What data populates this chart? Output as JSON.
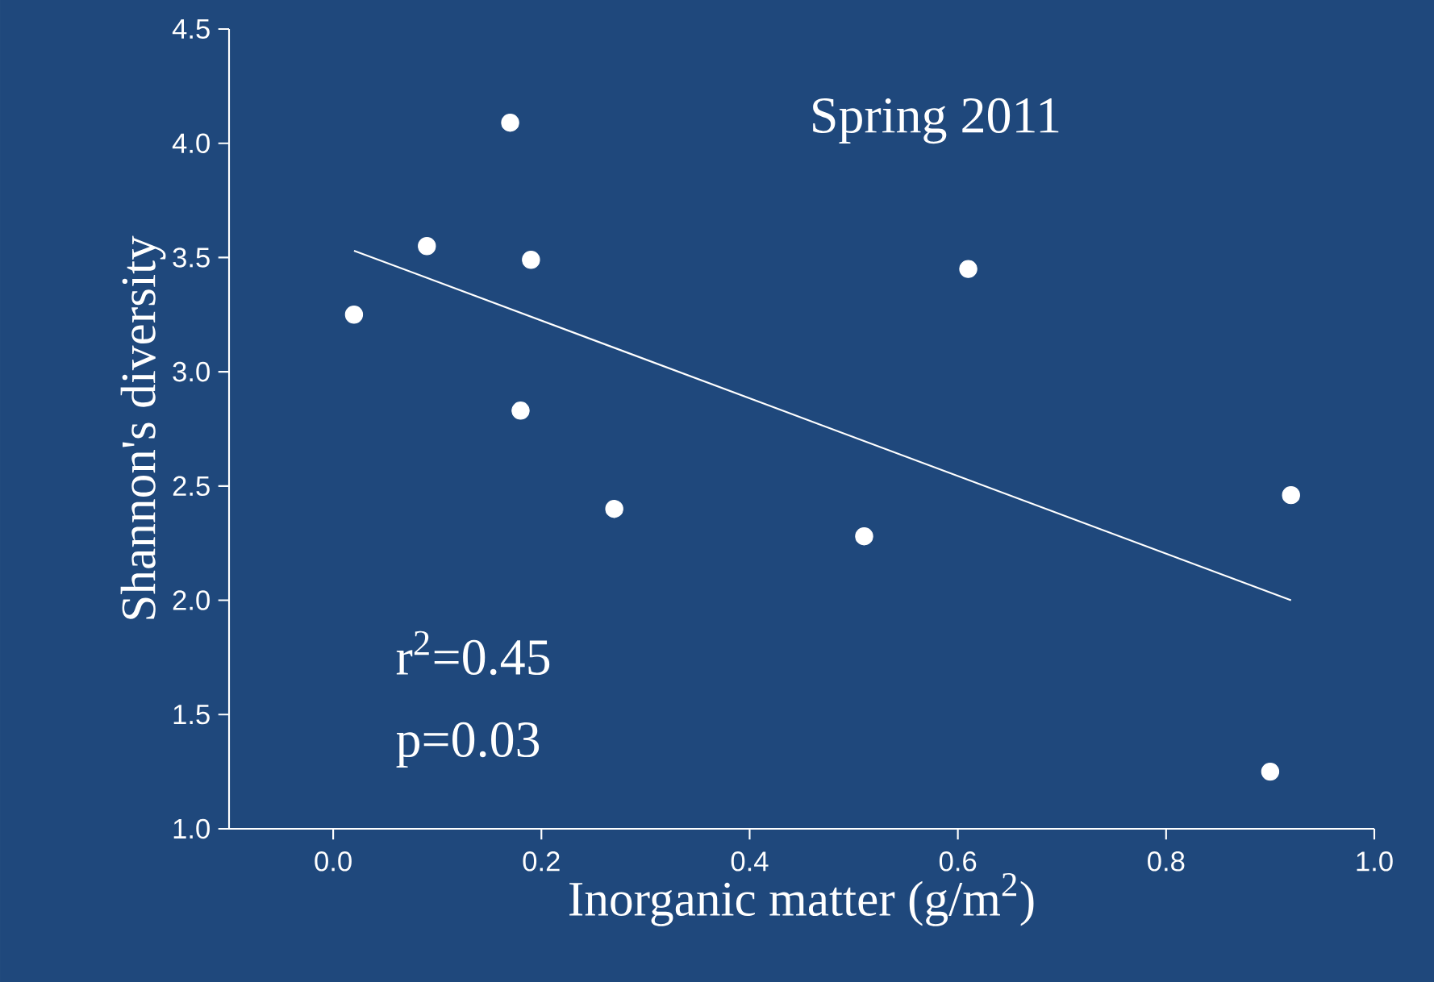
{
  "chart_data": {
    "type": "scatter",
    "xlabel": "Inorganic matter (g/m$^{2}$)",
    "ylabel": "Shannon's diversity",
    "xlim": [
      -0.1,
      1.0
    ],
    "xticks": [
      {
        "value": 0,
        "label": "0.0"
      },
      0.2,
      0.4,
      0.6,
      0.8,
      {
        "value": 1,
        "label": "1.0"
      }
    ],
    "ylim": [
      1.0,
      4.5
    ],
    "yticks": [
      {
        "value": 1,
        "label": "1.0"
      },
      1.5,
      {
        "value": 2,
        "label": "2.0"
      },
      2.5,
      {
        "value": 3,
        "label": "3.0"
      },
      3.5,
      {
        "value": 4,
        "label": "4.0"
      },
      4.5
    ],
    "annotations": [
      "Spring 2011",
      "r$^{2}$=0.45",
      "p=0.03"
    ],
    "series": [
      {
        "marker": "circle",
        "color": "#ffffff",
        "x": [
          0.02,
          0.09,
          0.17,
          0.19,
          0.18,
          0.27,
          0.51,
          0.61,
          0.92,
          0.9
        ],
        "values": [
          3.25,
          3.55,
          4.09,
          3.49,
          2.83,
          2.4,
          2.28,
          3.45,
          2.46,
          1.25
        ]
      },
      {
        "type": "line",
        "marker": "none",
        "color": "#ffffff",
        "x": [
          0.02,
          0.92
        ],
        "values": [
          3.53,
          2.0
        ]
      }
    ]
  }
}
